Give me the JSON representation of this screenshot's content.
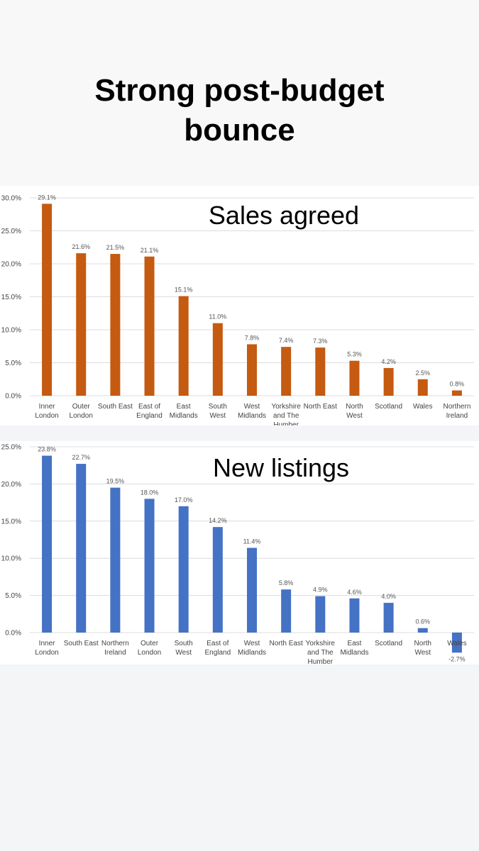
{
  "headline": [
    "Strong post-budget",
    "bounce"
  ],
  "chart_data": [
    {
      "type": "bar",
      "title": "Sales agreed",
      "color": "#c55a11",
      "ylim": [
        0,
        30
      ],
      "yticks": [
        "0.0%",
        "5.0%",
        "10.0%",
        "15.0%",
        "20.0%",
        "25.0%",
        "30.0%"
      ],
      "categories": [
        [
          "Inner",
          "London"
        ],
        [
          "Outer",
          "London"
        ],
        [
          "South East"
        ],
        [
          "East of",
          "England"
        ],
        [
          "East",
          "Midlands"
        ],
        [
          "South",
          "West"
        ],
        [
          "West",
          "Midlands"
        ],
        [
          "Yorkshire",
          "and The",
          "Humber"
        ],
        [
          "North East"
        ],
        [
          "North",
          "West"
        ],
        [
          "Scotland"
        ],
        [
          "Wales"
        ],
        [
          "Northern",
          "Ireland"
        ]
      ],
      "values": [
        29.1,
        21.6,
        21.5,
        21.1,
        15.1,
        11.0,
        7.8,
        7.4,
        7.3,
        5.3,
        4.2,
        2.5,
        0.8
      ],
      "labels": [
        "29.1%",
        "21.6%",
        "21.5%",
        "21.1%",
        "15.1%",
        "11.0%",
        "7.8%",
        "7.4%",
        "7.3%",
        "5.3%",
        "4.2%",
        "2.5%",
        "0.8%"
      ]
    },
    {
      "type": "bar",
      "title": "New listings",
      "color": "#4472c4",
      "ylim": [
        -3,
        25
      ],
      "yticks": [
        "0.0%",
        "5.0%",
        "10.0%",
        "15.0%",
        "20.0%",
        "25.0%"
      ],
      "categories": [
        [
          "Inner",
          "London"
        ],
        [
          "South East"
        ],
        [
          "Northern",
          "Ireland"
        ],
        [
          "Outer",
          "London"
        ],
        [
          "South",
          "West"
        ],
        [
          "East of",
          "England"
        ],
        [
          "West",
          "Midlands"
        ],
        [
          "North East"
        ],
        [
          "Yorkshire",
          "and The",
          "Humber"
        ],
        [
          "East",
          "Midlands"
        ],
        [
          "Scotland"
        ],
        [
          "North",
          "West"
        ],
        [
          "Wales"
        ]
      ],
      "values": [
        23.8,
        22.7,
        19.5,
        18.0,
        17.0,
        14.2,
        11.4,
        5.8,
        4.9,
        4.6,
        4.0,
        0.6,
        -2.7
      ],
      "labels": [
        "23.8%",
        "22.7%",
        "19.5%",
        "18.0%",
        "17.0%",
        "14.2%",
        "11.4%",
        "5.8%",
        "4.9%",
        "4.6%",
        "4.0%",
        "0.6%",
        "-2.7%"
      ]
    }
  ]
}
